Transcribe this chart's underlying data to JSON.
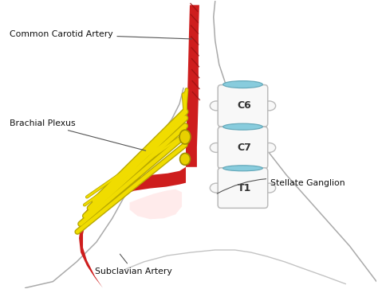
{
  "background_color": "#ffffff",
  "labels": {
    "common_carotid": "Common Carotid Artery",
    "brachial_plexus": "Brachial Plexus",
    "subclavian": "Subclavian Artery",
    "stellate": "Stellate Ganglion",
    "C6": "C6",
    "C7": "C7",
    "T1": "T1"
  },
  "colors": {
    "red": "#CC1111",
    "red_dark": "#991111",
    "yellow": "#F0DC00",
    "yellow_outline": "#B8A800",
    "blue": "#88CCDD",
    "blue_dark": "#66AABB",
    "bone_white": "#f8f8f8",
    "bone_outline": "#bbbbbb",
    "skin_outline": "#aaaaaa",
    "pink_light": "#FFE0E0",
    "ann_line": "#555555",
    "text_dark": "#111111"
  },
  "figsize": [
    4.74,
    3.63
  ],
  "dpi": 100
}
